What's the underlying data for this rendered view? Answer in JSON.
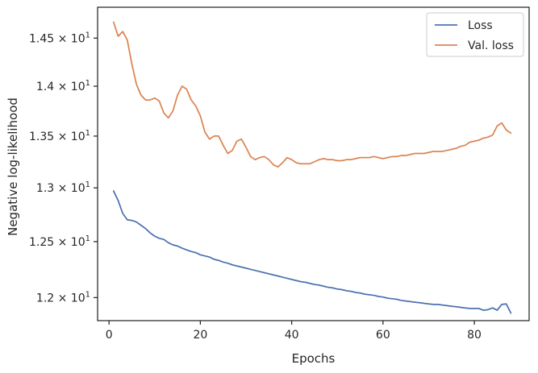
{
  "chart_data": {
    "type": "line",
    "xlabel": "Epochs",
    "ylabel": "Negative log-likelihood",
    "xlim": [
      -2.5,
      92
    ],
    "ylim": [
      11.8,
      14.83
    ],
    "y_scale": "log",
    "legend_position": "top-right",
    "x_ticks": [
      0,
      20,
      40,
      60,
      80
    ],
    "x_tick_labels": [
      "0",
      "20",
      "40",
      "60",
      "80"
    ],
    "y_ticks": [
      12.0,
      12.5,
      13.0,
      13.5,
      14.0,
      14.5
    ],
    "y_tick_labels": [
      {
        "mantissa": "1.2",
        "base": "10",
        "exp": "1"
      },
      {
        "mantissa": "1.25",
        "base": "10",
        "exp": "1"
      },
      {
        "mantissa": "1.3",
        "base": "10",
        "exp": "1"
      },
      {
        "mantissa": "1.35",
        "base": "10",
        "exp": "1"
      },
      {
        "mantissa": "1.4",
        "base": "10",
        "exp": "1"
      },
      {
        "mantissa": "1.45",
        "base": "10",
        "exp": "1"
      }
    ],
    "series": [
      {
        "name": "Loss",
        "color": "#4c72b0",
        "x": [
          1,
          2,
          3,
          4,
          5,
          6,
          7,
          8,
          9,
          10,
          11,
          12,
          13,
          14,
          15,
          16,
          17,
          18,
          19,
          20,
          21,
          22,
          23,
          24,
          25,
          26,
          27,
          28,
          29,
          30,
          31,
          32,
          33,
          34,
          35,
          36,
          37,
          38,
          39,
          40,
          41,
          42,
          43,
          44,
          45,
          46,
          47,
          48,
          49,
          50,
          51,
          52,
          53,
          54,
          55,
          56,
          57,
          58,
          59,
          60,
          61,
          62,
          63,
          64,
          65,
          66,
          67,
          68,
          69,
          70,
          71,
          72,
          73,
          74,
          75,
          76,
          77,
          78,
          79,
          80,
          81,
          82,
          83,
          84,
          85,
          86,
          87,
          88
        ],
        "y": [
          12.97,
          12.88,
          12.76,
          12.7,
          12.695,
          12.68,
          12.65,
          12.62,
          12.58,
          12.55,
          12.53,
          12.52,
          12.49,
          12.47,
          12.46,
          12.44,
          12.425,
          12.41,
          12.4,
          12.38,
          12.37,
          12.36,
          12.34,
          12.33,
          12.315,
          12.305,
          12.29,
          12.28,
          12.27,
          12.26,
          12.25,
          12.24,
          12.23,
          12.22,
          12.21,
          12.2,
          12.19,
          12.18,
          12.17,
          12.16,
          12.15,
          12.14,
          12.135,
          12.125,
          12.115,
          12.11,
          12.1,
          12.09,
          12.085,
          12.075,
          12.07,
          12.06,
          12.055,
          12.045,
          12.04,
          12.03,
          12.025,
          12.02,
          12.01,
          12.005,
          11.995,
          11.99,
          11.985,
          11.975,
          11.97,
          11.965,
          11.96,
          11.955,
          11.95,
          11.945,
          11.94,
          11.94,
          11.935,
          11.93,
          11.925,
          11.92,
          11.915,
          11.91,
          11.905,
          11.905,
          11.905,
          11.89,
          11.895,
          11.91,
          11.89,
          11.94,
          11.945,
          11.865
        ]
      },
      {
        "name": "Val. loss",
        "color": "#dd8452",
        "x": [
          1,
          2,
          3,
          4,
          5,
          6,
          7,
          8,
          9,
          10,
          11,
          12,
          13,
          14,
          15,
          16,
          17,
          18,
          19,
          20,
          21,
          22,
          23,
          24,
          25,
          26,
          27,
          28,
          29,
          30,
          31,
          32,
          33,
          34,
          35,
          36,
          37,
          38,
          39,
          40,
          41,
          42,
          43,
          44,
          45,
          46,
          47,
          48,
          49,
          50,
          51,
          52,
          53,
          54,
          55,
          56,
          57,
          58,
          59,
          60,
          61,
          62,
          63,
          64,
          65,
          66,
          67,
          68,
          69,
          70,
          71,
          72,
          73,
          74,
          75,
          76,
          77,
          78,
          79,
          80,
          81,
          82,
          83,
          84,
          85,
          86,
          87,
          88
        ],
        "y": [
          14.67,
          14.52,
          14.57,
          14.48,
          14.23,
          14.02,
          13.91,
          13.86,
          13.86,
          13.88,
          13.85,
          13.73,
          13.68,
          13.75,
          13.91,
          14.0,
          13.97,
          13.86,
          13.8,
          13.7,
          13.54,
          13.47,
          13.5,
          13.5,
          13.41,
          13.33,
          13.36,
          13.45,
          13.47,
          13.39,
          13.3,
          13.27,
          13.29,
          13.3,
          13.27,
          13.22,
          13.2,
          13.24,
          13.29,
          13.27,
          13.24,
          13.23,
          13.23,
          13.23,
          13.25,
          13.27,
          13.28,
          13.27,
          13.27,
          13.26,
          13.26,
          13.27,
          13.27,
          13.28,
          13.29,
          13.29,
          13.29,
          13.3,
          13.29,
          13.28,
          13.29,
          13.3,
          13.3,
          13.31,
          13.31,
          13.32,
          13.33,
          13.33,
          13.33,
          13.34,
          13.35,
          13.35,
          13.35,
          13.36,
          13.37,
          13.38,
          13.4,
          13.41,
          13.44,
          13.45,
          13.46,
          13.48,
          13.49,
          13.51,
          13.6,
          13.63,
          13.56,
          13.53
        ]
      }
    ]
  }
}
